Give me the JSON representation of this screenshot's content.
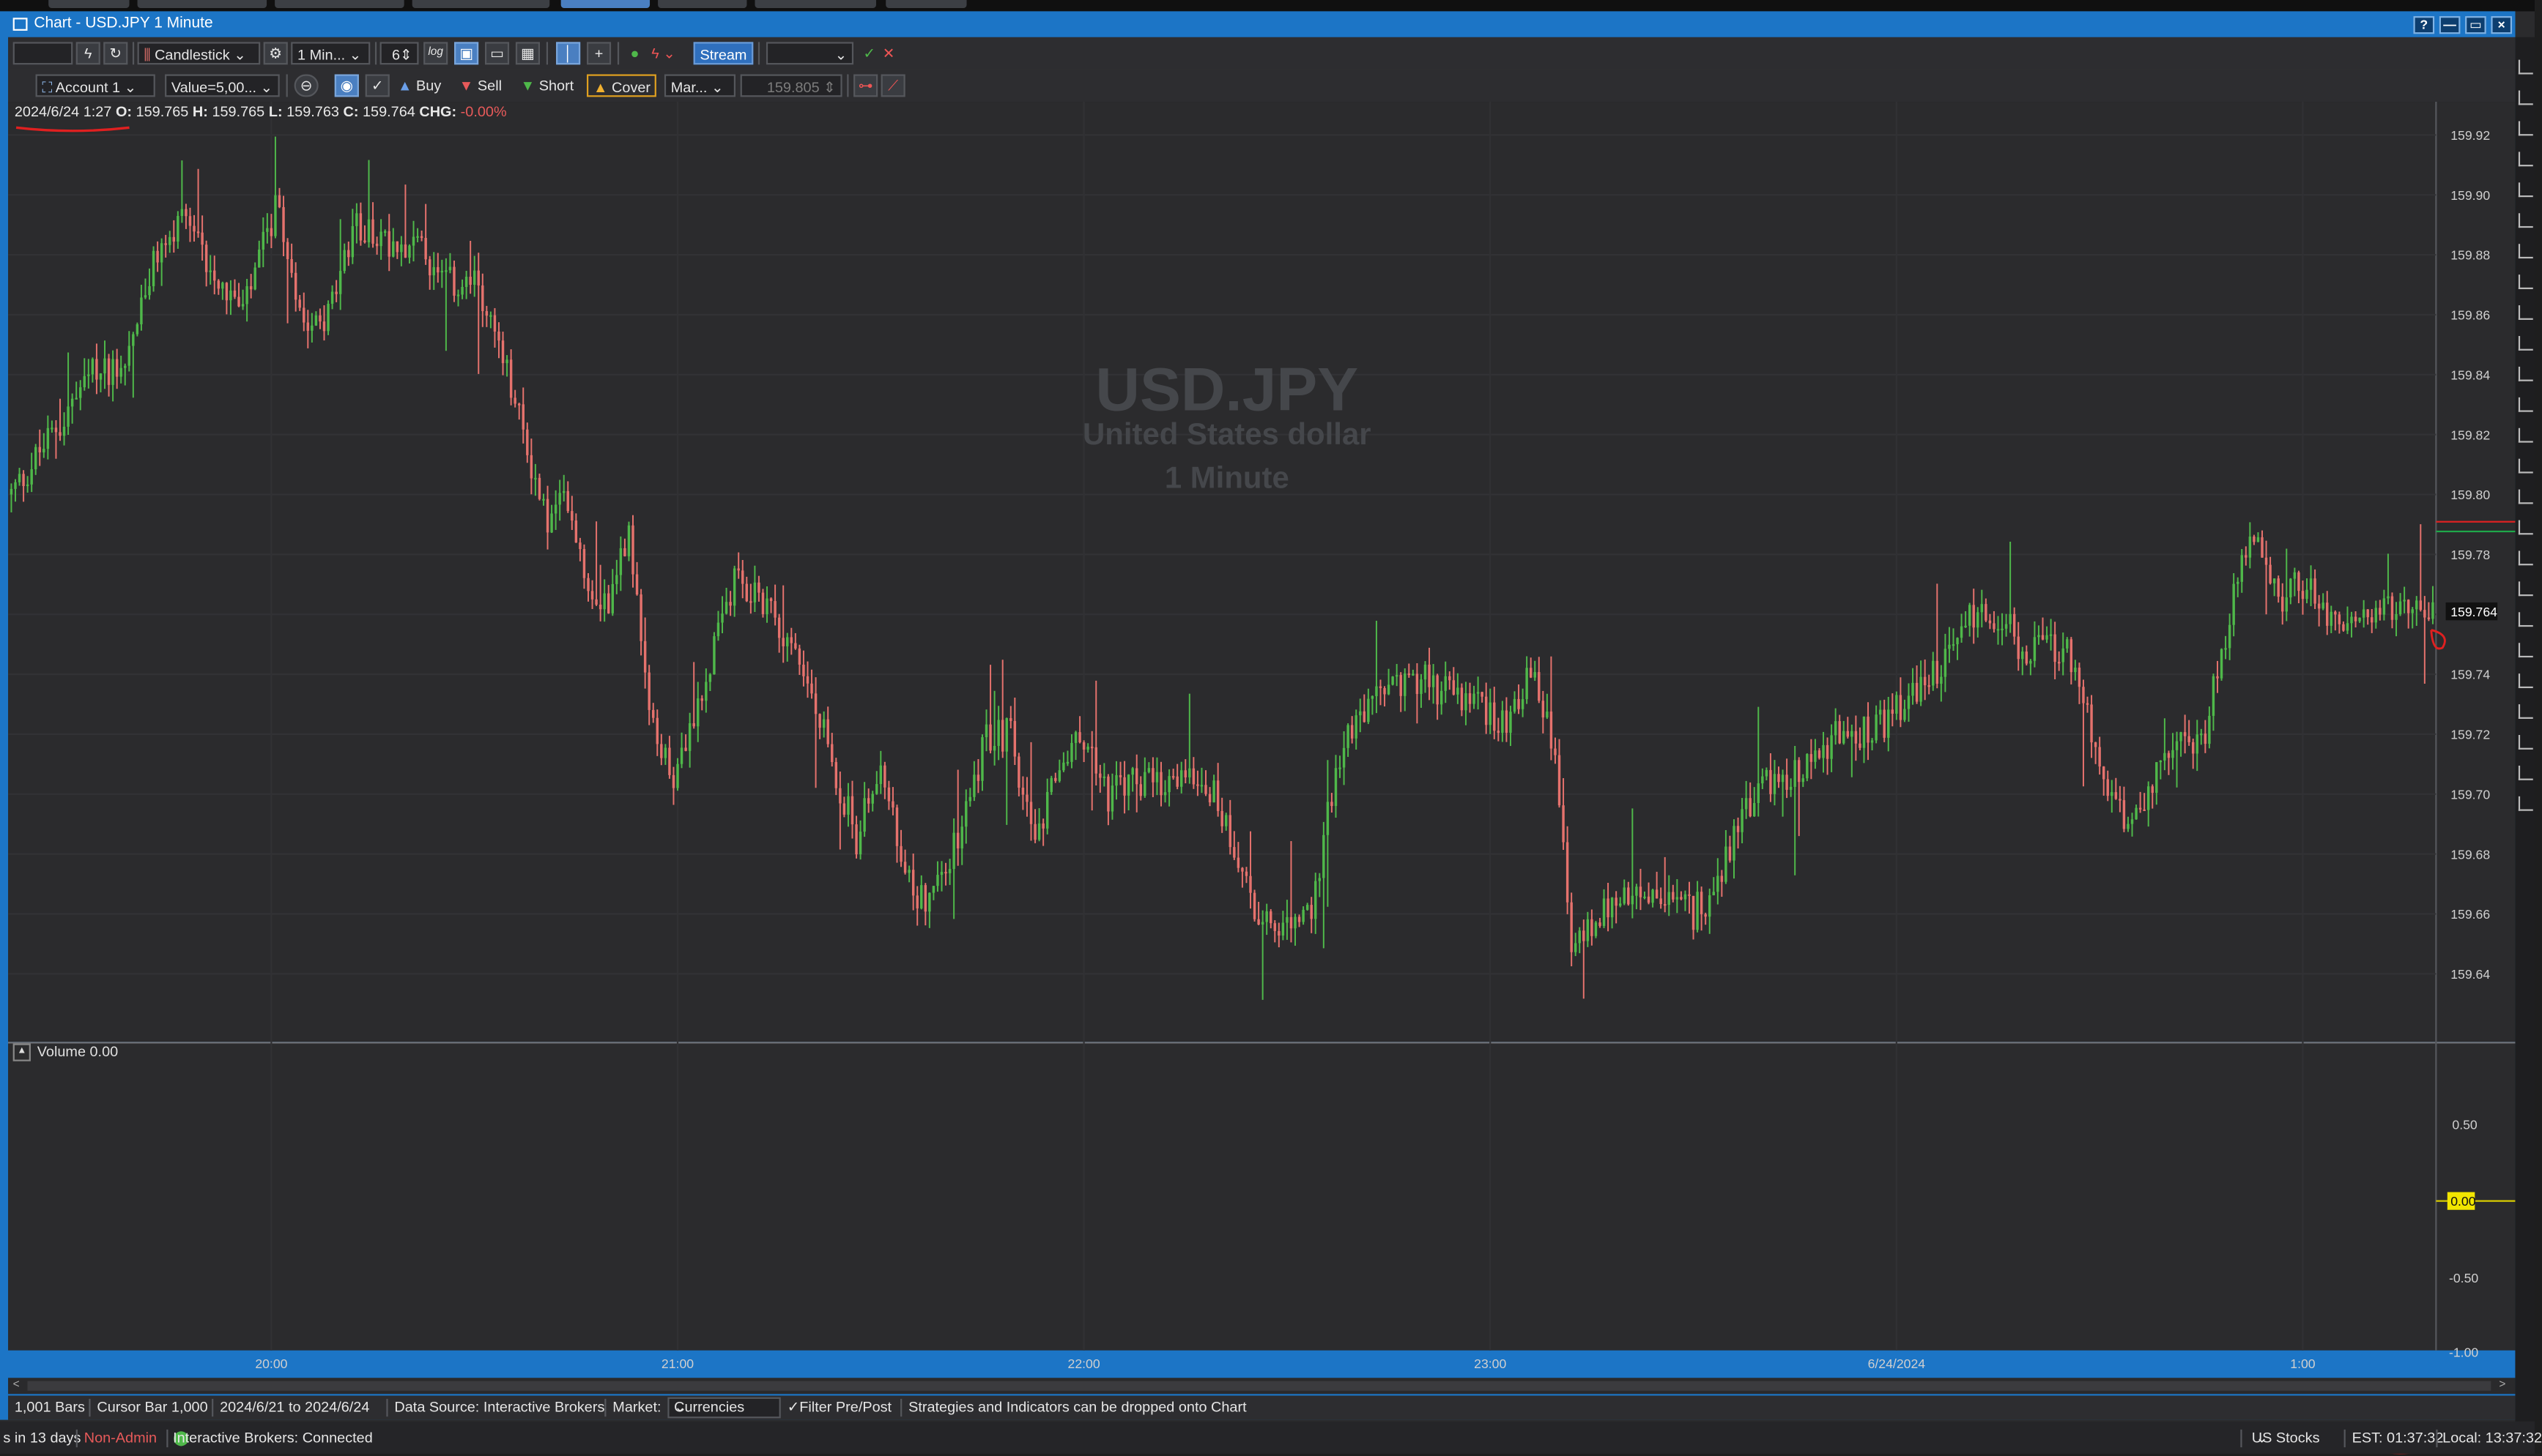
{
  "window": {
    "title": "Chart - USD.JPY 1 Minute"
  },
  "window_buttons": [
    "?",
    "—",
    "▭",
    "×"
  ],
  "toolbar1": {
    "symbol_box": "",
    "chart_type": "Candlestick",
    "interval": "1 Min...",
    "count": "6",
    "log_label": "log",
    "stream_label": "Stream"
  },
  "toolbar2": {
    "account": "Account 1",
    "value": "Value=5,00...",
    "buy": "Buy",
    "sell": "Sell",
    "short": "Short",
    "cover": "Cover",
    "order_type": "Mar...",
    "price": "159.805"
  },
  "ohlc": {
    "date": "2024/6/24 1:27",
    "o_label": "O:",
    "o": "159.765",
    "h_label": "H:",
    "h": "159.765",
    "l_label": "L:",
    "l": "159.763",
    "c_label": "C:",
    "c": "159.764",
    "chg_label": "CHG:",
    "chg": "-0.00%"
  },
  "watermark": {
    "symbol": "USD.JPY",
    "name": "United States dollar",
    "interval": "1 Minute"
  },
  "volume": {
    "label": "Volume 0.00",
    "current": "0.00",
    "ticks": [
      "0.50",
      "-0.50",
      "-1.00"
    ]
  },
  "colors": {
    "up": "#4fb84a",
    "down": "#e5726d",
    "accent": "#1c75c6",
    "price_tag": "#111111",
    "volume_tag": "#f2e600"
  },
  "chart_data": {
    "type": "candlestick",
    "symbol": "USD.JPY",
    "interval": "1 Minute",
    "ylim": [
      159.62,
      159.93
    ],
    "yticks": [
      159.92,
      159.9,
      159.88,
      159.86,
      159.84,
      159.82,
      159.8,
      159.78,
      159.76,
      159.74,
      159.72,
      159.7,
      159.68,
      159.66,
      159.64
    ],
    "ytick_labels": [
      "159.92",
      "159.90",
      "159.88",
      "159.86",
      "159.84",
      "159.82",
      "159.80",
      "159.78",
      "159.76",
      "159.74",
      "159.72",
      "159.70",
      "159.68",
      "159.66",
      "159.64"
    ],
    "last_price": "159.764",
    "xticks": [
      "20:00",
      "21:00",
      "22:00",
      "23:00",
      "6/24/2024",
      "1:00"
    ],
    "close_path": [
      [
        0,
        159.8
      ],
      [
        10,
        159.82
      ],
      [
        20,
        159.84
      ],
      [
        28,
        159.845
      ],
      [
        36,
        159.88
      ],
      [
        42,
        159.89
      ],
      [
        50,
        159.875
      ],
      [
        57,
        159.86
      ],
      [
        65,
        159.895
      ],
      [
        72,
        159.86
      ],
      [
        78,
        159.86
      ],
      [
        85,
        159.89
      ],
      [
        92,
        159.885
      ],
      [
        99,
        159.885
      ],
      [
        106,
        159.87
      ],
      [
        115,
        159.87
      ],
      [
        122,
        159.84
      ],
      [
        128,
        159.81
      ],
      [
        132,
        159.79
      ],
      [
        137,
        159.8
      ],
      [
        142,
        159.77
      ],
      [
        147,
        159.765
      ],
      [
        152,
        159.79
      ],
      [
        158,
        159.72
      ],
      [
        164,
        159.705
      ],
      [
        170,
        159.735
      ],
      [
        178,
        159.77
      ],
      [
        186,
        159.765
      ],
      [
        194,
        159.745
      ],
      [
        200,
        159.72
      ],
      [
        208,
        159.685
      ],
      [
        214,
        159.71
      ],
      [
        220,
        159.67
      ],
      [
        226,
        159.665
      ],
      [
        233,
        159.685
      ],
      [
        240,
        159.72
      ],
      [
        246,
        159.72
      ],
      [
        252,
        159.68
      ],
      [
        258,
        159.71
      ],
      [
        264,
        159.72
      ],
      [
        270,
        159.7
      ],
      [
        277,
        159.705
      ],
      [
        284,
        159.7
      ],
      [
        290,
        159.71
      ],
      [
        296,
        159.7
      ],
      [
        302,
        159.68
      ],
      [
        308,
        159.655
      ],
      [
        314,
        159.655
      ],
      [
        320,
        159.66
      ],
      [
        326,
        159.71
      ],
      [
        332,
        159.725
      ],
      [
        338,
        159.735
      ],
      [
        345,
        159.74
      ],
      [
        352,
        159.735
      ],
      [
        360,
        159.73
      ],
      [
        368,
        159.725
      ],
      [
        374,
        159.74
      ],
      [
        380,
        159.715
      ],
      [
        384,
        159.645
      ],
      [
        390,
        159.66
      ],
      [
        398,
        159.665
      ],
      [
        406,
        159.665
      ],
      [
        414,
        159.66
      ],
      [
        420,
        159.67
      ],
      [
        426,
        159.695
      ],
      [
        434,
        159.705
      ],
      [
        442,
        159.71
      ],
      [
        450,
        159.72
      ],
      [
        458,
        159.72
      ],
      [
        466,
        159.73
      ],
      [
        474,
        159.74
      ],
      [
        482,
        159.76
      ],
      [
        490,
        159.76
      ],
      [
        496,
        159.745
      ],
      [
        502,
        159.75
      ],
      [
        508,
        159.745
      ],
      [
        514,
        159.705
      ],
      [
        520,
        159.69
      ],
      [
        528,
        159.705
      ],
      [
        534,
        159.715
      ],
      [
        540,
        159.72
      ],
      [
        546,
        159.76
      ],
      [
        552,
        159.79
      ],
      [
        558,
        159.765
      ],
      [
        564,
        159.77
      ],
      [
        570,
        159.76
      ],
      [
        576,
        159.757
      ],
      [
        584,
        159.76
      ],
      [
        590,
        159.765
      ],
      [
        596,
        159.764
      ]
    ],
    "xtick_index": [
      64,
      164,
      264,
      364,
      464,
      564
    ]
  },
  "status_bar": {
    "bars": "1,001 Bars",
    "cursor": "Cursor Bar 1,000",
    "range": "2024/6/21 to 2024/6/24",
    "source": "Data Source: Interactive Brokers",
    "market_label": "Market:",
    "market": "Currencies",
    "filter": "Filter Pre/Post",
    "hint": "Strategies and Indicators can be dropped onto Chart"
  },
  "bottom_bar": {
    "left": "s in 13 days",
    "admin": "Non-Admin",
    "connection": "Interactive Brokers: Connected",
    "market": "US Stocks",
    "est": "EST: 01:37:32",
    "local": "Local: 13:37:32"
  }
}
